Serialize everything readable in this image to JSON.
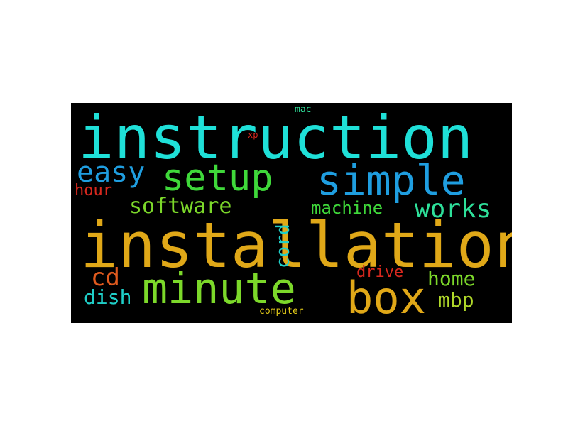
{
  "wordcloud": {
    "words": [
      {
        "text": "instruction",
        "color": "#1fe0d8"
      },
      {
        "text": "installation",
        "color": "#e0a818"
      },
      {
        "text": "setup",
        "color": "#3fd83a"
      },
      {
        "text": "simple",
        "color": "#1f9ee0"
      },
      {
        "text": "easy",
        "color": "#1f9ee0"
      },
      {
        "text": "hour",
        "color": "#d8281e"
      },
      {
        "text": "software",
        "color": "#7cd82a"
      },
      {
        "text": "machine",
        "color": "#3fd83a"
      },
      {
        "text": "works",
        "color": "#2ee09a"
      },
      {
        "text": "cord",
        "color": "#1fcfc8"
      },
      {
        "text": "cd",
        "color": "#e05a1e"
      },
      {
        "text": "dish",
        "color": "#1fcfc8"
      },
      {
        "text": "minute",
        "color": "#7cd82a"
      },
      {
        "text": "box",
        "color": "#e0a818"
      },
      {
        "text": "drive",
        "color": "#d8281e"
      },
      {
        "text": "home",
        "color": "#7cd82a"
      },
      {
        "text": "mbp",
        "color": "#b0d82a"
      },
      {
        "text": "computer",
        "color": "#e0c818"
      },
      {
        "text": "mac",
        "color": "#2ee09a"
      },
      {
        "text": "xp",
        "color": "#d8281e"
      }
    ]
  }
}
